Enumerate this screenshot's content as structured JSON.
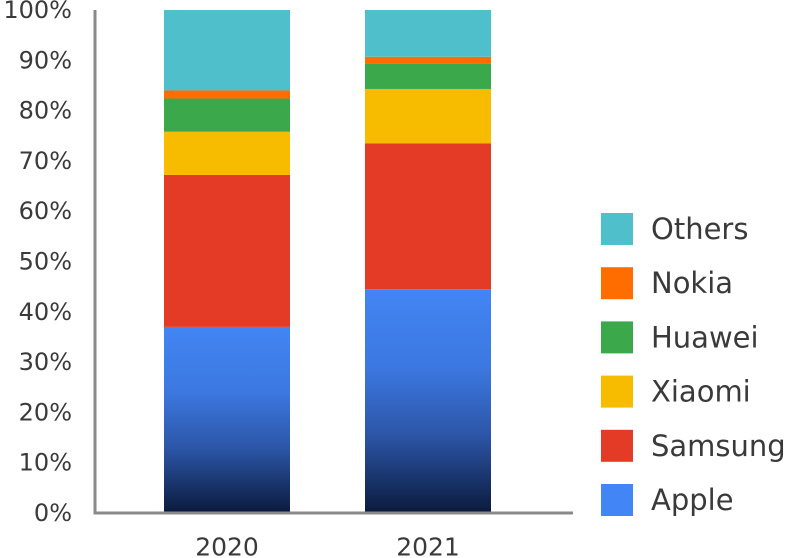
{
  "chart_data": {
    "type": "bar",
    "stacked": true,
    "categories": [
      "2020",
      "2021"
    ],
    "series": [
      {
        "name": "Apple",
        "color": "#4285f4",
        "values": [
          37,
          44.5
        ]
      },
      {
        "name": "Samsung",
        "color": "#e33b26",
        "values": [
          30.2,
          29
        ]
      },
      {
        "name": "Xiaomi",
        "color": "#f7bb00",
        "values": [
          8.6,
          10.8
        ]
      },
      {
        "name": "Huawei",
        "color": "#3ba84c",
        "values": [
          6.6,
          5.1
        ]
      },
      {
        "name": "Nokia",
        "color": "#ff6d00",
        "values": [
          1.6,
          1.3
        ]
      },
      {
        "name": "Others",
        "color": "#4fc0cb",
        "values": [
          16,
          9.3
        ]
      }
    ],
    "yticks": [
      "0%",
      "10%",
      "20%",
      "30%",
      "40%",
      "50%",
      "60%",
      "70%",
      "80%",
      "90%",
      "100%"
    ],
    "ylim": [
      0,
      100
    ],
    "legend_position": "right",
    "title": "",
    "xlabel": "",
    "ylabel": ""
  }
}
